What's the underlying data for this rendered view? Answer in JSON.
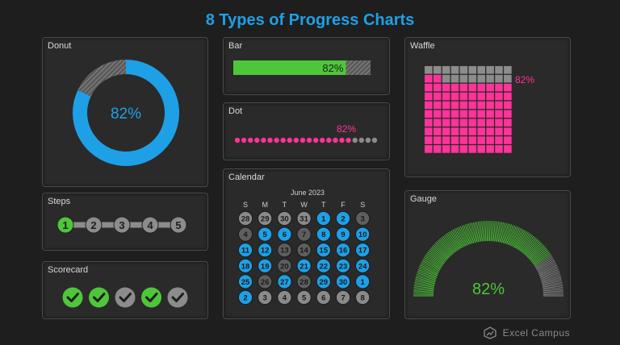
{
  "page": {
    "title": "8 Types of Progress Charts",
    "brand": "Excel Campus"
  },
  "colors": {
    "blue": "#1ea0e6",
    "green": "#4ec63a",
    "pink": "#ff3399",
    "gray": "#8c8c8c",
    "darkgray": "#5a5a5a",
    "stroke": "#222222"
  },
  "chart_data": [
    {
      "id": "donut",
      "type": "pie",
      "title": "Donut",
      "value": 0.82,
      "label": "82%"
    },
    {
      "id": "bar",
      "type": "bar",
      "title": "Bar",
      "value": 0.82,
      "label": "82%"
    },
    {
      "id": "dot",
      "type": "scatter",
      "title": "Dot",
      "value": 0.82,
      "label": "82%",
      "total_dots": 22,
      "filled_dots": 18
    },
    {
      "id": "waffle",
      "type": "heatmap",
      "title": "Waffle",
      "value": 0.82,
      "label": "82%",
      "rows": 10,
      "cols": 10,
      "filled": 82
    },
    {
      "id": "steps",
      "type": "line",
      "title": "Steps",
      "labels": [
        "1",
        "2",
        "3",
        "4",
        "5"
      ],
      "current": 1
    },
    {
      "id": "scorecard",
      "type": "table",
      "title": "Scorecard",
      "items": [
        true,
        true,
        false,
        true,
        false
      ]
    },
    {
      "id": "calendar",
      "type": "table",
      "title": "Calendar",
      "month": "June 2023",
      "weekdays": [
        "S",
        "M",
        "T",
        "W",
        "T",
        "F",
        "S"
      ],
      "days": [
        "28",
        "29",
        "30",
        "31",
        "1",
        "2",
        "3",
        "4",
        "5",
        "6",
        "7",
        "8",
        "9",
        "10",
        "11",
        "12",
        "13",
        "14",
        "15",
        "16",
        "17",
        "18",
        "19",
        "20",
        "21",
        "22",
        "23",
        "24",
        "25",
        "26",
        "27",
        "28",
        "29",
        "30",
        "1",
        "2",
        "3",
        "4",
        "5",
        "6",
        "7",
        "8"
      ],
      "states": [
        "o",
        "o",
        "o",
        "o",
        "b",
        "b",
        "g",
        "g",
        "b",
        "b",
        "g",
        "b",
        "b",
        "b",
        "b",
        "b",
        "g",
        "g",
        "b",
        "b",
        "b",
        "b",
        "b",
        "g",
        "b",
        "b",
        "b",
        "b",
        "b",
        "g",
        "b",
        "g",
        "b",
        "b",
        "b",
        "b",
        "o",
        "o",
        "o",
        "o",
        "o",
        "o"
      ]
    },
    {
      "id": "gauge",
      "type": "bar",
      "title": "Gauge",
      "value": 0.82,
      "label": "82%"
    }
  ]
}
